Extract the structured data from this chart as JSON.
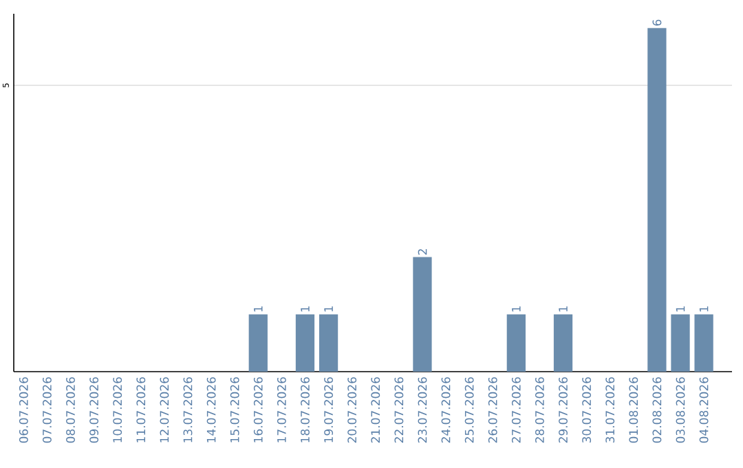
{
  "chart_data": {
    "type": "bar",
    "categories": [
      "06.07.2026",
      "07.07.2026",
      "08.07.2026",
      "09.07.2026",
      "10.07.2026",
      "11.07.2026",
      "12.07.2026",
      "13.07.2026",
      "14.07.2026",
      "15.07.2026",
      "16.07.2026",
      "17.07.2026",
      "18.07.2026",
      "19.07.2026",
      "20.07.2026",
      "21.07.2026",
      "22.07.2026",
      "23.07.2026",
      "24.07.2026",
      "25.07.2026",
      "26.07.2026",
      "27.07.2026",
      "28.07.2026",
      "29.07.2026",
      "30.07.2026",
      "31.07.2026",
      "01.08.2026",
      "02.08.2026",
      "03.08.2026",
      "04.08.2026"
    ],
    "values": [
      0,
      0,
      0,
      0,
      0,
      0,
      0,
      0,
      0,
      0,
      1,
      0,
      1,
      1,
      0,
      0,
      0,
      2,
      0,
      0,
      0,
      1,
      0,
      1,
      0,
      0,
      0,
      6,
      1,
      1
    ],
    "value_labels": [
      null,
      null,
      null,
      null,
      null,
      null,
      null,
      null,
      null,
      null,
      "1",
      null,
      "1",
      "1",
      null,
      null,
      null,
      "2",
      null,
      null,
      null,
      "1",
      null,
      "1",
      null,
      null,
      null,
      "6",
      "1",
      "1"
    ],
    "color": "#6a8cac",
    "ylim": [
      0,
      6.25
    ],
    "yticks": [
      5
    ],
    "grid": "y"
  }
}
